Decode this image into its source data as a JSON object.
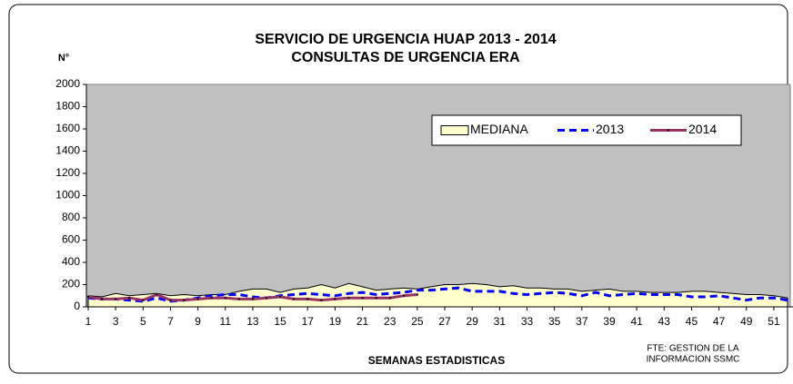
{
  "chart_data": {
    "type": "line",
    "title": "SERVICIO DE URGENCIA HUAP 2013 - 2014",
    "subtitle": "CONSULTAS DE URGENCIA ERA",
    "y_label": "N°",
    "x_label": "SEMANAS ESTADISTICAS",
    "source": [
      "FTE: GESTION DE LA",
      "INFORMACION SSMC"
    ],
    "x": [
      1,
      2,
      3,
      4,
      5,
      6,
      7,
      8,
      9,
      10,
      11,
      12,
      13,
      14,
      15,
      16,
      17,
      18,
      19,
      20,
      21,
      22,
      23,
      24,
      25,
      26,
      27,
      28,
      29,
      30,
      31,
      32,
      33,
      34,
      35,
      36,
      37,
      38,
      39,
      40,
      41,
      42,
      43,
      44,
      45,
      46,
      47,
      48,
      49,
      50,
      51,
      52
    ],
    "xlim": [
      1,
      52
    ],
    "xticks": [
      1,
      3,
      5,
      7,
      9,
      11,
      13,
      15,
      17,
      19,
      21,
      23,
      25,
      27,
      29,
      31,
      33,
      35,
      37,
      39,
      41,
      43,
      45,
      47,
      49,
      51
    ],
    "ylim": [
      0,
      2000
    ],
    "yticks": [
      0,
      200,
      400,
      600,
      800,
      1000,
      1200,
      1400,
      1600,
      1800,
      2000
    ],
    "plot_background": "#c0c0c0",
    "legend": "upper right",
    "series": [
      {
        "name": "MEDIANA",
        "kind": "area",
        "color": "#ffffcc",
        "values": [
          100,
          90,
          120,
          100,
          110,
          120,
          100,
          110,
          100,
          110,
          110,
          140,
          160,
          160,
          130,
          160,
          170,
          200,
          170,
          210,
          180,
          150,
          160,
          170,
          160,
          180,
          200,
          200,
          210,
          200,
          180,
          190,
          170,
          170,
          160,
          160,
          140,
          150,
          160,
          140,
          140,
          130,
          130,
          130,
          140,
          140,
          130,
          120,
          110,
          110,
          100,
          80
        ]
      },
      {
        "name": "2013",
        "kind": "dashed",
        "color": "#0000ff",
        "values": [
          80,
          70,
          70,
          60,
          50,
          80,
          50,
          60,
          80,
          100,
          110,
          110,
          90,
          80,
          100,
          110,
          120,
          110,
          100,
          120,
          130,
          110,
          120,
          130,
          150,
          150,
          160,
          170,
          140,
          140,
          140,
          120,
          110,
          120,
          130,
          120,
          100,
          130,
          100,
          110,
          120,
          110,
          110,
          110,
          90,
          90,
          100,
          80,
          60,
          80,
          80,
          60
        ]
      },
      {
        "name": "2014",
        "kind": "solid",
        "color": "#993366",
        "values": [
          90,
          70,
          70,
          80,
          60,
          110,
          60,
          60,
          70,
          80,
          80,
          70,
          70,
          80,
          90,
          70,
          70,
          60,
          70,
          80,
          80,
          80,
          80,
          100,
          110,
          null,
          null,
          null,
          null,
          null,
          null,
          null,
          null,
          null,
          null,
          null,
          null,
          null,
          null,
          null,
          null,
          null,
          null,
          null,
          null,
          null,
          null,
          null,
          null,
          null,
          null,
          null
        ]
      }
    ]
  }
}
